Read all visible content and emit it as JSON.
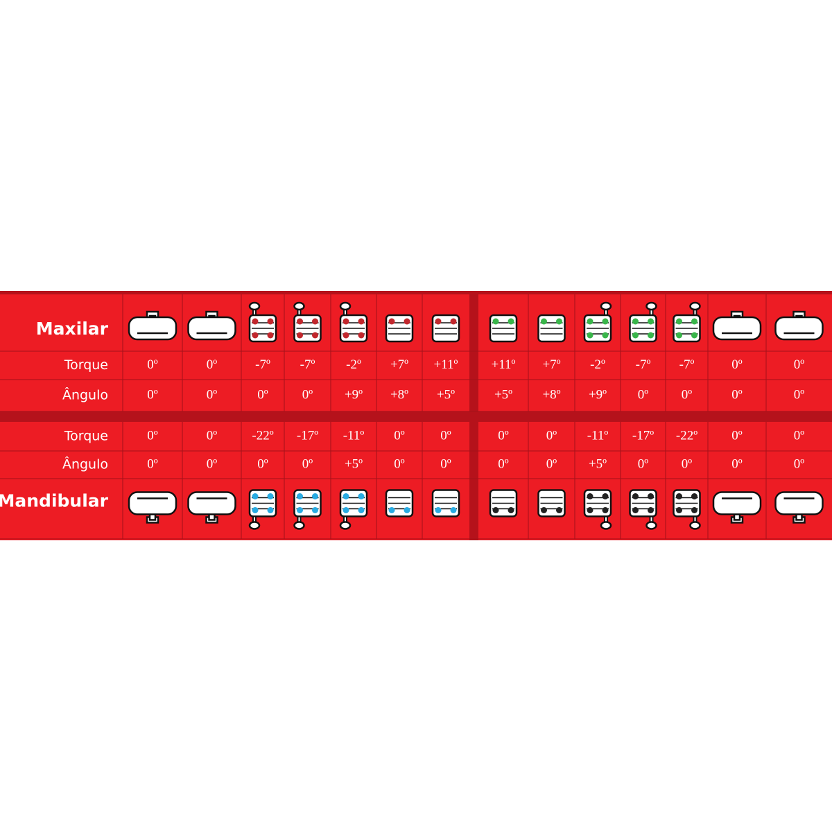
{
  "maxilar": {
    "title": "Maxilar",
    "rows": [
      {
        "label": "Torque",
        "values": [
          "0º",
          "0º",
          "-7º",
          "-7º",
          "-2º",
          "+7º",
          "+11º",
          "+11º",
          "+7º",
          "-2º",
          "-7º",
          "-7º",
          "0º",
          "0º"
        ]
      },
      {
        "label": "Ângulo",
        "values": [
          "0º",
          "0º",
          "0º",
          "0º",
          "+9º",
          "+8º",
          "+5º",
          "+5º",
          "+8º",
          "+9º",
          "0º",
          "0º",
          "0º",
          "0º"
        ]
      }
    ]
  },
  "mandibular": {
    "title": "Mandibular",
    "rows": [
      {
        "label": "Torque",
        "values": [
          "0º",
          "0º",
          "-22º",
          "-17º",
          "-11º",
          "0º",
          "0º",
          "0º",
          "0º",
          "-11º",
          "-17º",
          "-22º",
          "0º",
          "0º"
        ]
      },
      {
        "label": "Ângulo",
        "values": [
          "0º",
          "0º",
          "0º",
          "0º",
          "+5º",
          "0º",
          "0º",
          "0º",
          "0º",
          "+5º",
          "0º",
          "0º",
          "0º",
          "0º"
        ]
      }
    ]
  }
}
